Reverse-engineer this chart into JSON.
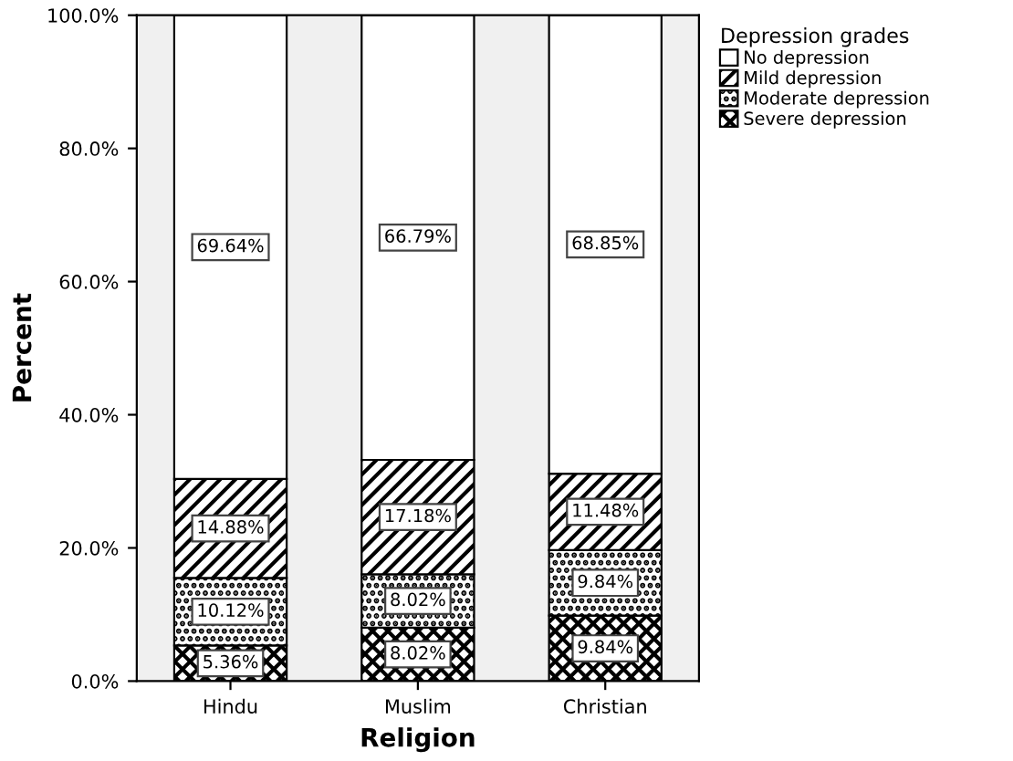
{
  "chart_data": {
    "type": "bar",
    "stacked": true,
    "xlabel": "Religion",
    "ylabel": "Percent",
    "legend_title": "Depression grades",
    "legend": "top right",
    "categories": [
      "Hindu",
      "Muslim",
      "Christian"
    ],
    "series": [
      {
        "name": "Severe depression",
        "color": "#000000",
        "values": [
          5.36,
          8.02,
          9.84
        ],
        "value_labels": [
          "5.36%",
          "8.02%",
          "9.84%"
        ]
      },
      {
        "name": "Moderate depression",
        "color": "#000000",
        "values": [
          10.12,
          8.02,
          9.84
        ],
        "value_labels": [
          "10.12%",
          "8.02%",
          "9.84%"
        ]
      },
      {
        "name": "Mild depression",
        "color": "#000000",
        "values": [
          14.88,
          17.18,
          11.48
        ],
        "value_labels": [
          "14.88%",
          "17.18%",
          "11.48%"
        ]
      },
      {
        "name": "No depression",
        "color": "#000000",
        "values": [
          69.64,
          66.79,
          68.85
        ],
        "value_labels": [
          "69.64%",
          "66.79%",
          "68.85%"
        ]
      }
    ],
    "ylim": [
      0,
      100
    ],
    "yticks": [
      {
        "value": 0,
        "label": "0.0%"
      },
      {
        "value": 20,
        "label": "20.0%"
      },
      {
        "value": 40,
        "label": "40.0%"
      },
      {
        "value": 60,
        "label": "60.0%"
      },
      {
        "value": 80,
        "label": "80.0%"
      },
      {
        "value": 100,
        "label": "100.0%"
      }
    ],
    "grid": false
  }
}
